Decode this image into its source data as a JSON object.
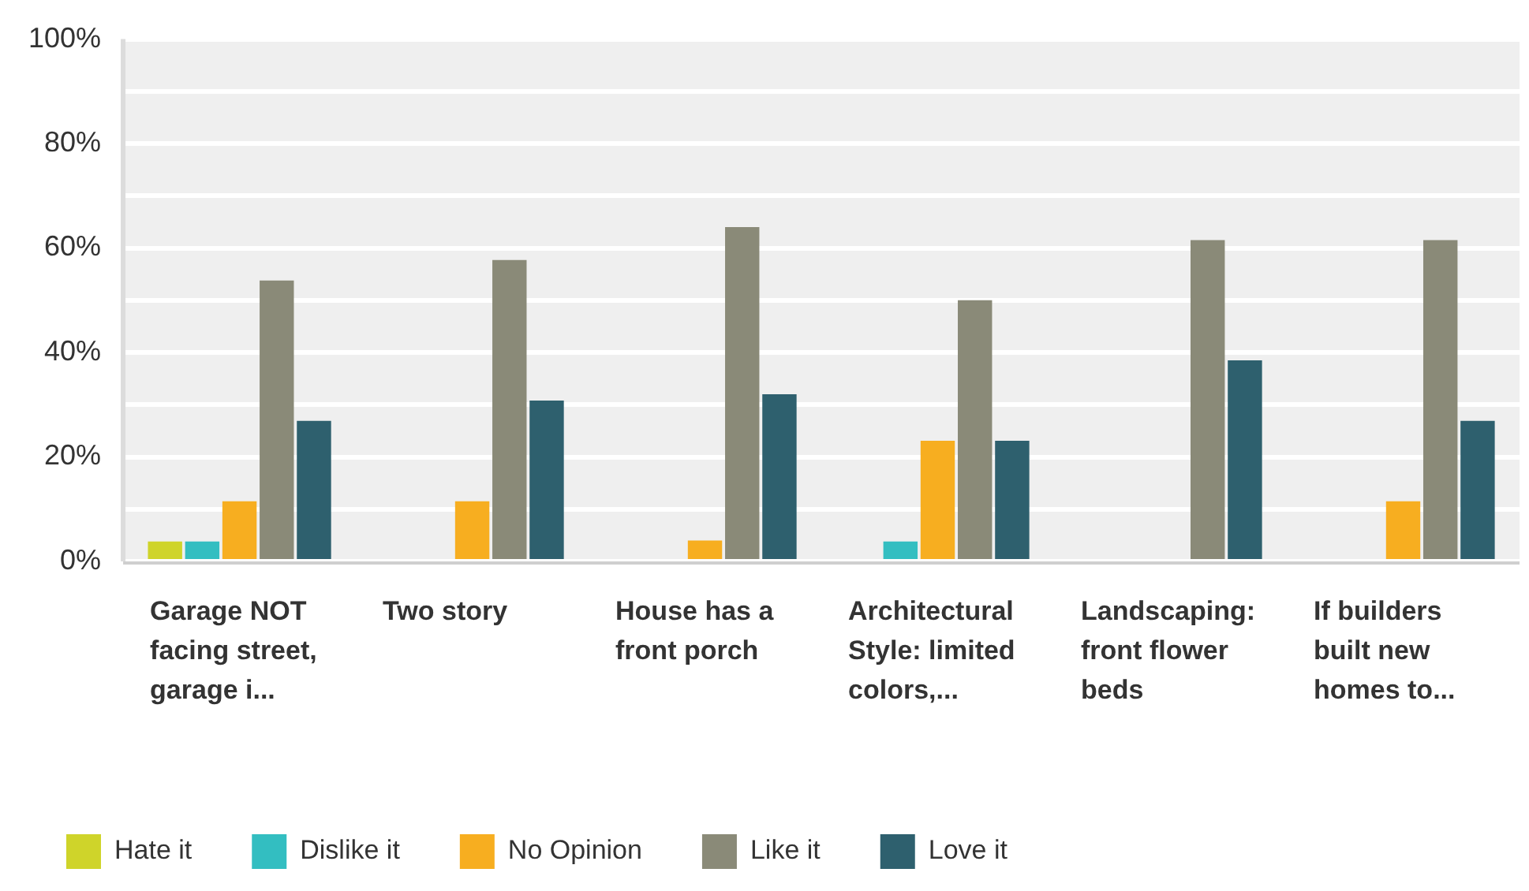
{
  "chart_data": {
    "type": "bar",
    "categories": [
      "Garage NOT facing street, garage i...",
      "Two story",
      "House has a front porch",
      "Architectural Style: limited colors,...",
      "Landscaping: front flower beds",
      "If builders built new homes to..."
    ],
    "series": [
      {
        "name": "Hate it",
        "color": "#cfd42a",
        "values": [
          3.8,
          0,
          0,
          0,
          0,
          0
        ]
      },
      {
        "name": "Dislike it",
        "color": "#33bec1",
        "values": [
          3.8,
          0,
          0,
          3.8,
          0,
          0
        ]
      },
      {
        "name": "No Opinion",
        "color": "#f7ae20",
        "values": [
          11.5,
          11.5,
          4,
          23.1,
          0,
          11.5
        ]
      },
      {
        "name": "Like it",
        "color": "#8a8a78",
        "values": [
          53.8,
          57.7,
          64,
          50,
          61.5,
          61.5
        ]
      },
      {
        "name": "Love it",
        "color": "#2e606e",
        "values": [
          26.9,
          30.8,
          32,
          23.1,
          38.5,
          26.9
        ]
      }
    ],
    "ylim": [
      0,
      100
    ],
    "yticks": [
      {
        "value": 0,
        "label": "0%"
      },
      {
        "value": 10,
        "label": null
      },
      {
        "value": 20,
        "label": "20%"
      },
      {
        "value": 30,
        "label": null
      },
      {
        "value": 40,
        "label": "40%"
      },
      {
        "value": 50,
        "label": null
      },
      {
        "value": 60,
        "label": "60%"
      },
      {
        "value": 70,
        "label": null
      },
      {
        "value": 80,
        "label": "80%"
      },
      {
        "value": 90,
        "label": null
      },
      {
        "value": 100,
        "label": "100%"
      }
    ],
    "grid": true,
    "legend": "bottom left"
  }
}
